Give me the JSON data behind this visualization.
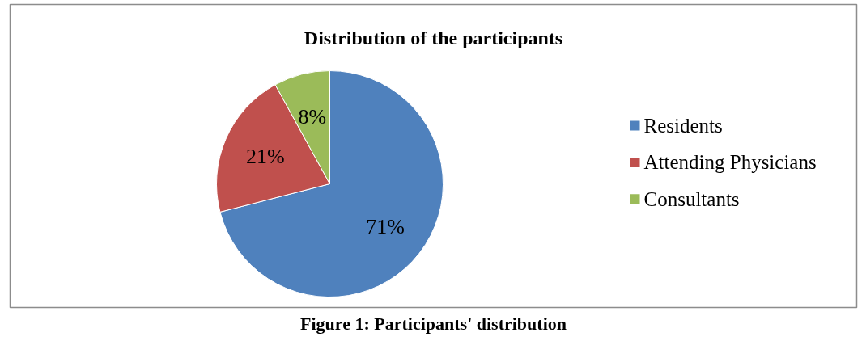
{
  "chart_data": {
    "type": "pie",
    "title": "Distribution of the participants",
    "categories": [
      "Residents",
      "Attending Physicians",
      "Consultants"
    ],
    "values": [
      71,
      21,
      8
    ],
    "value_labels": [
      "71%",
      "21%",
      "8%"
    ],
    "colors": [
      "#4f81bd",
      "#c0504d",
      "#9bbb59"
    ],
    "legend": "right",
    "annotations": [
      "Figure 1: Participants' distribution"
    ]
  }
}
